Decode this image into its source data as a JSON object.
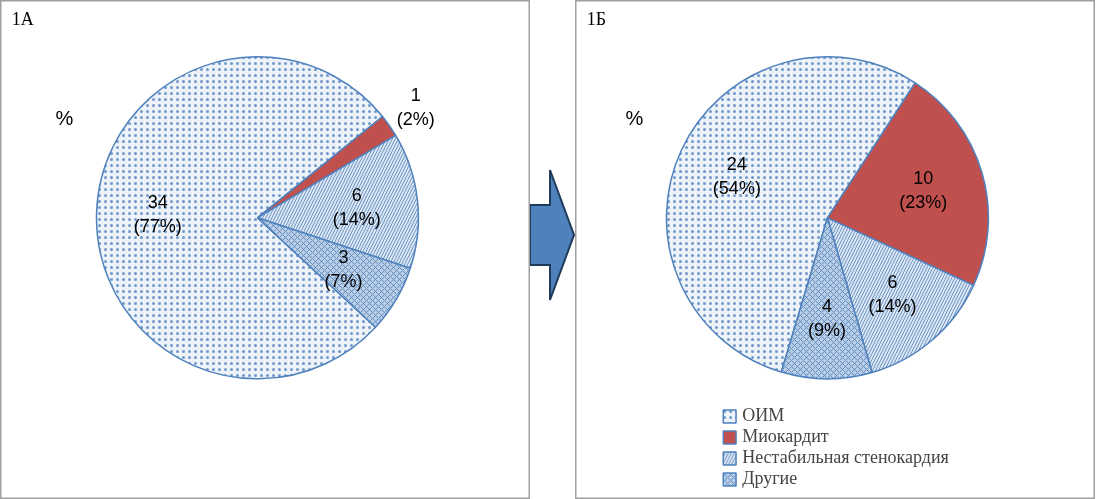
{
  "chart_data": [
    {
      "type": "pie",
      "title": "1А",
      "annotations": [
        "%"
      ],
      "legend": false,
      "categories": [
        null,
        null,
        null,
        null
      ],
      "values": [
        34,
        1,
        6,
        3
      ],
      "value_labels": [
        "34\n(77%)",
        "1\n(2%)",
        "6\n(14%)",
        "3\n(7%)"
      ],
      "colors": [
        "#eef3fa",
        "#c0504d",
        "#dce6f2",
        "#b9cde5"
      ]
    },
    {
      "type": "pie",
      "title": "1Б",
      "annotations": [
        "%"
      ],
      "legend": "bottom",
      "categories": [
        "ОИМ",
        "Миокардит",
        "Нестабильная стенокардия",
        "Другие"
      ],
      "values": [
        24,
        10,
        6,
        4
      ],
      "value_labels": [
        "24\n(54%)",
        "10\n(23%)",
        "6\n(14%)",
        "4\n(9%)"
      ],
      "colors": [
        "#eef3fa",
        "#c0504d",
        "#dce6f2",
        "#b9cde5"
      ]
    }
  ]
}
